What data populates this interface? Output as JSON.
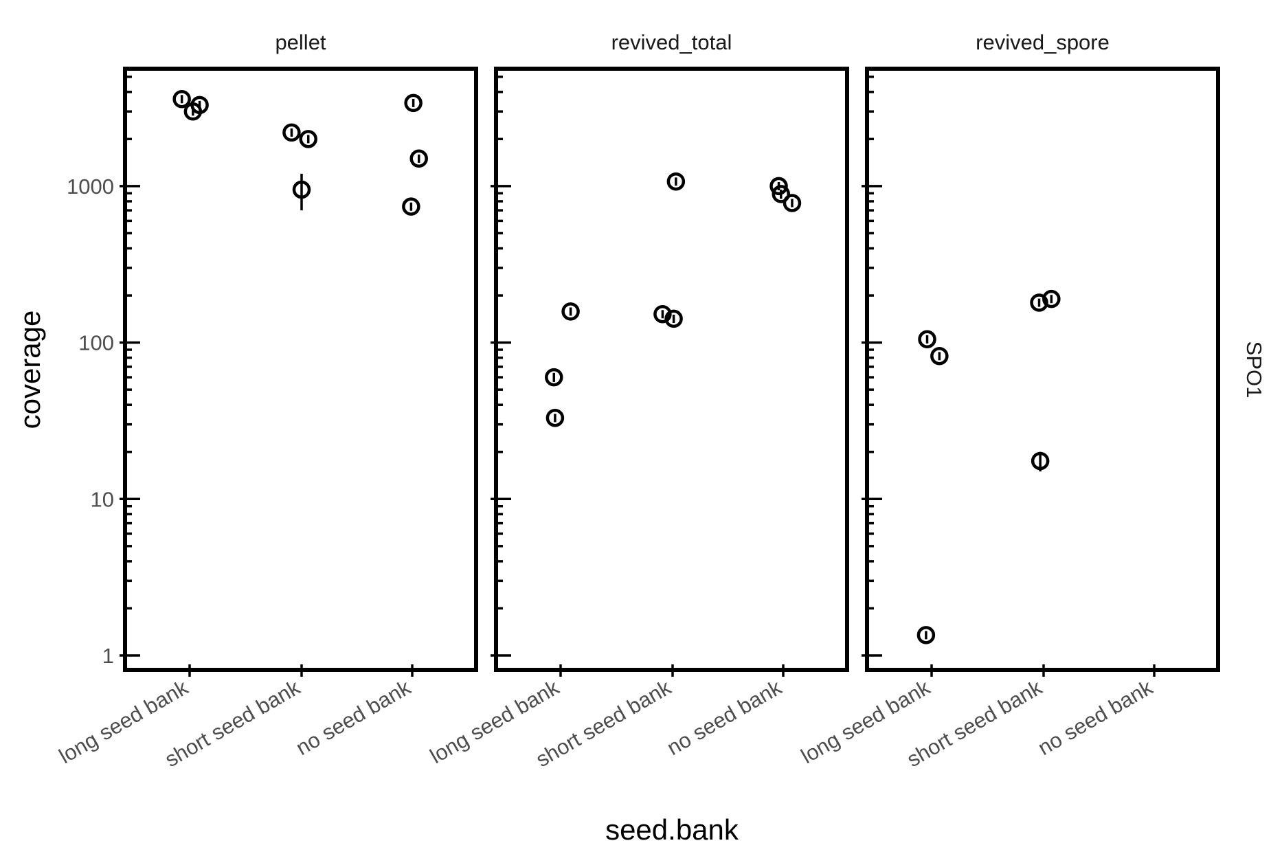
{
  "chart_data": {
    "type": "scatter",
    "xlabel": "seed.bank",
    "ylabel": "coverage",
    "y_scale": "log10",
    "ylim": [
      0.8,
      5500
    ],
    "y_ticks": [
      1,
      10,
      100,
      1000
    ],
    "y_tick_labels": [
      "1",
      "10",
      "100",
      "1000"
    ],
    "categories": [
      "long seed bank",
      "short seed bank",
      "no seed bank"
    ],
    "strip_label": "SPO1",
    "facets": [
      {
        "title": "pellet",
        "points": [
          {
            "category": "long seed bank",
            "jitter": -0.07,
            "y": 3600,
            "lo": 3500,
            "hi": 3700
          },
          {
            "category": "long seed bank",
            "jitter": 0.03,
            "y": 3000,
            "lo": 2900,
            "hi": 3100
          },
          {
            "category": "long seed bank",
            "jitter": 0.09,
            "y": 3300,
            "lo": 3200,
            "hi": 3400
          },
          {
            "category": "short seed bank",
            "jitter": -0.09,
            "y": 2200,
            "lo": 2120,
            "hi": 2280
          },
          {
            "category": "short seed bank",
            "jitter": 0.06,
            "y": 2000,
            "lo": 1930,
            "hi": 2070
          },
          {
            "category": "short seed bank",
            "jitter": 0.0,
            "y": 950,
            "lo": 700,
            "hi": 1200
          },
          {
            "category": "no seed bank",
            "jitter": 0.01,
            "y": 3400,
            "lo": 3300,
            "hi": 3500
          },
          {
            "category": "no seed bank",
            "jitter": 0.06,
            "y": 1500,
            "lo": 1440,
            "hi": 1560
          },
          {
            "category": "no seed bank",
            "jitter": -0.01,
            "y": 740,
            "lo": 715,
            "hi": 765
          }
        ]
      },
      {
        "title": "revived_total",
        "points": [
          {
            "category": "long seed bank",
            "jitter": 0.09,
            "y": 158,
            "lo": 150,
            "hi": 166
          },
          {
            "category": "long seed bank",
            "jitter": -0.06,
            "y": 60,
            "lo": 56,
            "hi": 64
          },
          {
            "category": "long seed bank",
            "jitter": -0.05,
            "y": 33,
            "lo": 31,
            "hi": 35
          },
          {
            "category": "short seed bank",
            "jitter": 0.03,
            "y": 1070,
            "lo": 1020,
            "hi": 1120
          },
          {
            "category": "short seed bank",
            "jitter": -0.09,
            "y": 152,
            "lo": 145,
            "hi": 159
          },
          {
            "category": "short seed bank",
            "jitter": 0.01,
            "y": 142,
            "lo": 135,
            "hi": 149
          },
          {
            "category": "no seed bank",
            "jitter": -0.04,
            "y": 1000,
            "lo": 960,
            "hi": 1040
          },
          {
            "category": "no seed bank",
            "jitter": -0.02,
            "y": 890,
            "lo": 830,
            "hi": 950
          },
          {
            "category": "no seed bank",
            "jitter": 0.08,
            "y": 780,
            "lo": 750,
            "hi": 810
          }
        ]
      },
      {
        "title": "revived_spore",
        "points": [
          {
            "category": "long seed bank",
            "jitter": -0.04,
            "y": 105,
            "lo": 100,
            "hi": 110
          },
          {
            "category": "long seed bank",
            "jitter": 0.07,
            "y": 82,
            "lo": 78,
            "hi": 86
          },
          {
            "category": "long seed bank",
            "jitter": -0.05,
            "y": 1.35,
            "lo": 1.28,
            "hi": 1.42
          },
          {
            "category": "short seed bank",
            "jitter": -0.04,
            "y": 180,
            "lo": 172,
            "hi": 188
          },
          {
            "category": "short seed bank",
            "jitter": 0.07,
            "y": 190,
            "lo": 182,
            "hi": 198
          },
          {
            "category": "short seed bank",
            "jitter": -0.03,
            "y": 17.5,
            "lo": 15,
            "hi": 20
          }
        ]
      }
    ]
  }
}
